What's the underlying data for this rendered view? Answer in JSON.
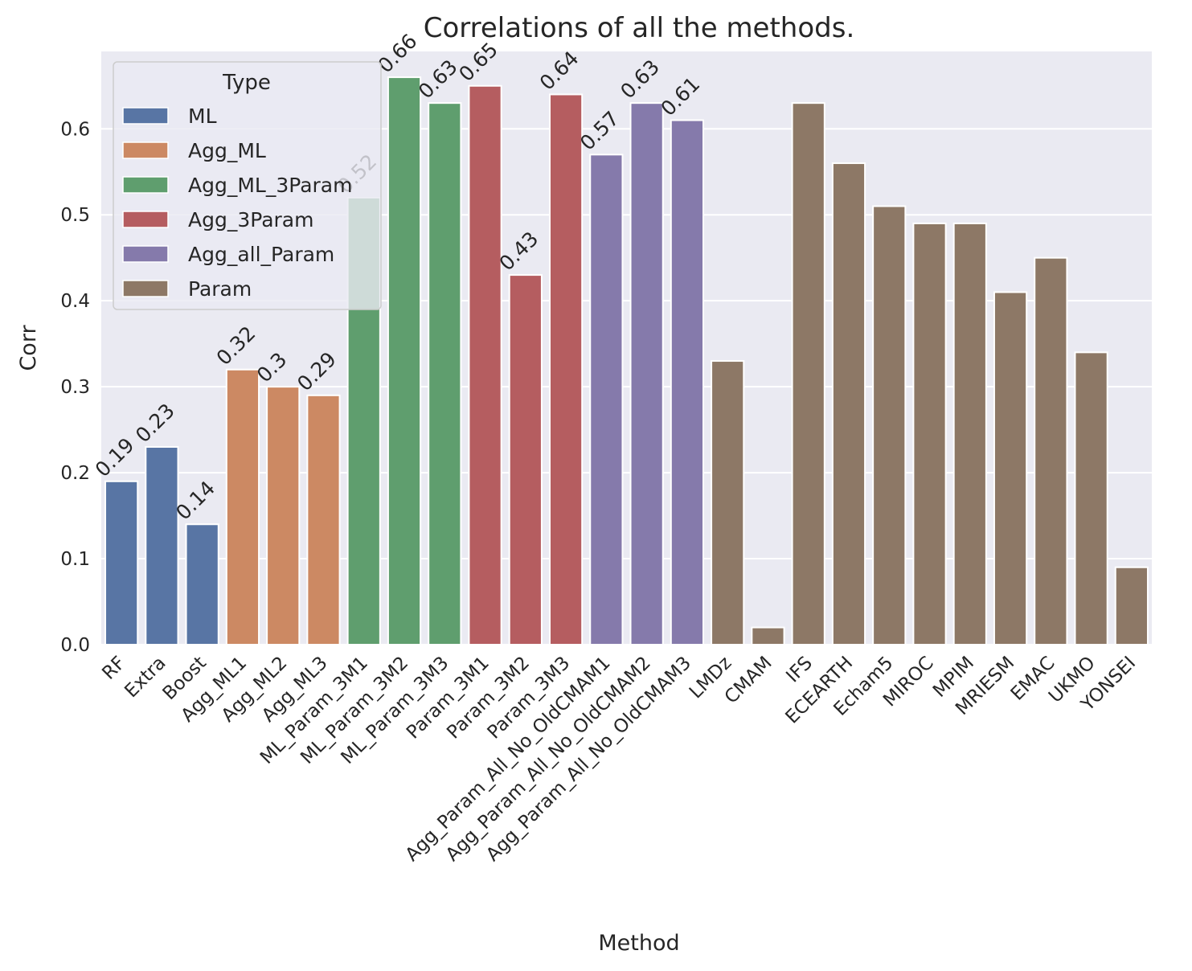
{
  "chart_data": {
    "type": "bar",
    "title": "Correlations of all the methods.",
    "xlabel": "Method",
    "ylabel": "Corr",
    "ylim": [
      0,
      0.69
    ],
    "yticks": [
      "0.0",
      "0.1",
      "0.2",
      "0.3",
      "0.4",
      "0.5",
      "0.6"
    ],
    "grid": true,
    "legend": {
      "title": "Type",
      "position": "top-left"
    },
    "types": [
      {
        "name": "ML",
        "color": "#5875a4"
      },
      {
        "name": "Agg_ML",
        "color": "#cc8963"
      },
      {
        "name": "Agg_ML_3Param",
        "color": "#5f9e6e"
      },
      {
        "name": "Agg_3Param",
        "color": "#b55d60"
      },
      {
        "name": "Agg_all_Param",
        "color": "#857aab"
      },
      {
        "name": "Param",
        "color": "#8d7866"
      }
    ],
    "bars": [
      {
        "category": "RF",
        "value": 0.19,
        "type": "ML",
        "label": "0.19"
      },
      {
        "category": "Extra",
        "value": 0.23,
        "type": "ML",
        "label": "0.23"
      },
      {
        "category": "Boost",
        "value": 0.14,
        "type": "ML",
        "label": "0.14"
      },
      {
        "category": "Agg_ML1",
        "value": 0.32,
        "type": "Agg_ML",
        "label": "0.32"
      },
      {
        "category": "Agg_ML2",
        "value": 0.3,
        "type": "Agg_ML",
        "label": "0.3"
      },
      {
        "category": "Agg_ML3",
        "value": 0.29,
        "type": "Agg_ML",
        "label": "0.29"
      },
      {
        "category": "ML_Param_3M1",
        "value": 0.52,
        "type": "Agg_ML_3Param",
        "label": "0.52"
      },
      {
        "category": "ML_Param_3M2",
        "value": 0.66,
        "type": "Agg_ML_3Param",
        "label": "0.66"
      },
      {
        "category": "ML_Param_3M3",
        "value": 0.63,
        "type": "Agg_ML_3Param",
        "label": "0.63"
      },
      {
        "category": "Param_3M1",
        "value": 0.65,
        "type": "Agg_3Param",
        "label": "0.65"
      },
      {
        "category": "Param_3M2",
        "value": 0.43,
        "type": "Agg_3Param",
        "label": "0.43"
      },
      {
        "category": "Param_3M3",
        "value": 0.64,
        "type": "Agg_3Param",
        "label": "0.64"
      },
      {
        "category": "Agg_Param_All_No_OldCMAM1",
        "value": 0.57,
        "type": "Agg_all_Param",
        "label": "0.57"
      },
      {
        "category": "Agg_Param_All_No_OldCMAM2",
        "value": 0.63,
        "type": "Agg_all_Param",
        "label": "0.63"
      },
      {
        "category": "Agg_Param_All_No_OldCMAM3",
        "value": 0.61,
        "type": "Agg_all_Param",
        "label": "0.61"
      },
      {
        "category": "LMDz",
        "value": 0.33,
        "type": "Param",
        "label": ""
      },
      {
        "category": "CMAM",
        "value": 0.02,
        "type": "Param",
        "label": ""
      },
      {
        "category": "IFS",
        "value": 0.63,
        "type": "Param",
        "label": ""
      },
      {
        "category": "ECEARTH",
        "value": 0.56,
        "type": "Param",
        "label": ""
      },
      {
        "category": "Echam5",
        "value": 0.51,
        "type": "Param",
        "label": ""
      },
      {
        "category": "MIROC",
        "value": 0.49,
        "type": "Param",
        "label": ""
      },
      {
        "category": "MPIM",
        "value": 0.49,
        "type": "Param",
        "label": ""
      },
      {
        "category": "MRIESM",
        "value": 0.41,
        "type": "Param",
        "label": ""
      },
      {
        "category": "EMAC",
        "value": 0.45,
        "type": "Param",
        "label": ""
      },
      {
        "category": "UKMO",
        "value": 0.34,
        "type": "Param",
        "label": ""
      },
      {
        "category": "YONSEI",
        "value": 0.09,
        "type": "Param",
        "label": ""
      }
    ]
  }
}
